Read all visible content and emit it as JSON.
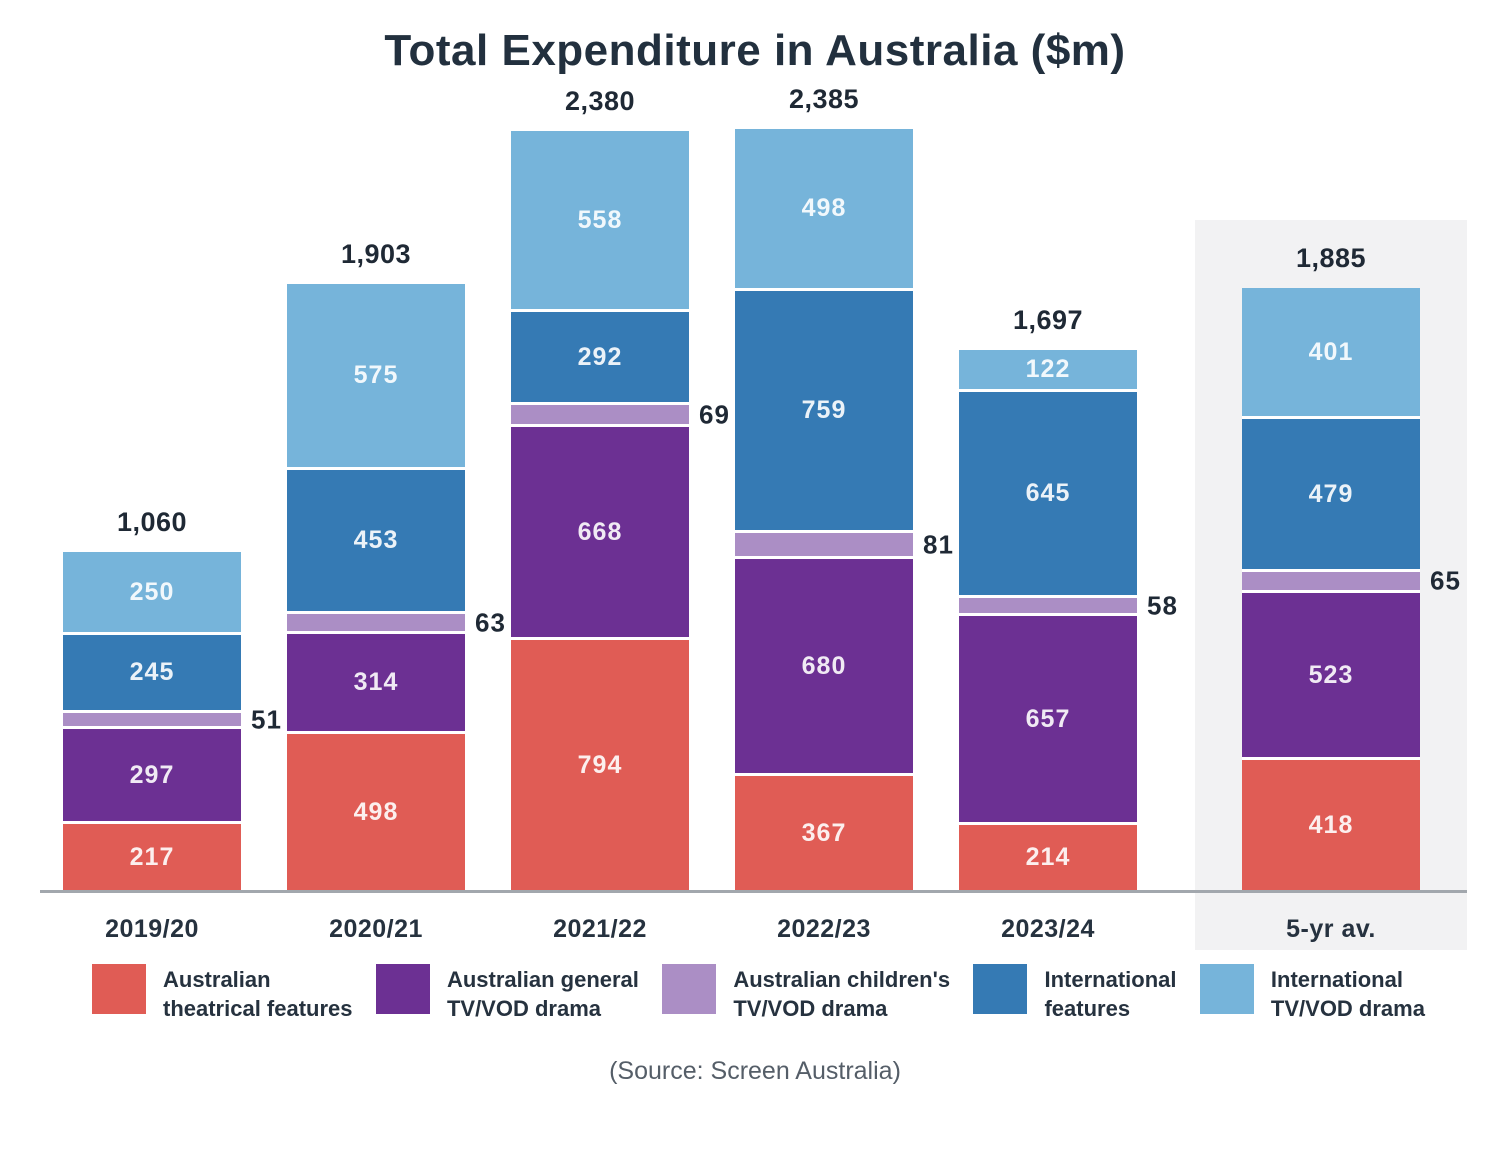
{
  "title": "Total Expenditure in Australia ($m)",
  "source": {
    "text": "(Source: Screen Australia)"
  },
  "legend": {
    "items": [
      {
        "label": "Australian\ntheatrical features"
      },
      {
        "label": "Australian general\nTV/VOD drama"
      },
      {
        "label": "Australian children's\nTV/VOD drama"
      },
      {
        "label": "International\nfeatures"
      },
      {
        "label": "International\nTV/VOD drama"
      }
    ]
  },
  "chart_data": {
    "type": "bar",
    "stacked": true,
    "title": "Total Expenditure in Australia ($m)",
    "categories": [
      "2019/20",
      "2020/21",
      "2021/22",
      "2022/23",
      "2023/24",
      "5-yr av."
    ],
    "series": [
      {
        "name": "Australian theatrical features",
        "color": "#E05C55",
        "values": [
          217,
          498,
          794,
          367,
          214,
          418
        ]
      },
      {
        "name": "Australian general TV/VOD drama",
        "color": "#6C3093",
        "values": [
          297,
          314,
          668,
          680,
          657,
          523
        ]
      },
      {
        "name": "Australian children's TV/VOD drama",
        "color": "#AB8EC5",
        "values": [
          51,
          63,
          69,
          81,
          58,
          65
        ]
      },
      {
        "name": "International features",
        "color": "#357AB4",
        "values": [
          245,
          453,
          292,
          759,
          645,
          479
        ]
      },
      {
        "name": "International TV/VOD drama",
        "color": "#76B4DA",
        "values": [
          250,
          575,
          558,
          498,
          122,
          401
        ]
      }
    ],
    "totals": [
      "1,060",
      "1,903",
      "2,380",
      "2,385",
      "1,697",
      "1,885"
    ],
    "highlight_category": "5-yr av.",
    "highlight_band_color": "#F2F2F3",
    "legend_position": "bottom",
    "grid": false,
    "ylim": [
      0,
      2385
    ]
  }
}
